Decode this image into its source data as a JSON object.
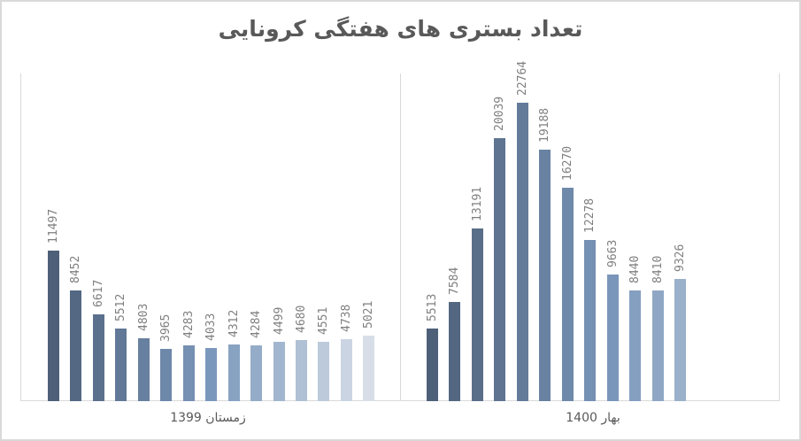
{
  "chart_data": {
    "type": "bar",
    "title": "تعداد بستری های هفتگی کرونایی",
    "xlabel": "",
    "ylabel": "",
    "grid": false,
    "legend": "none",
    "ylim": [
      0,
      22764
    ],
    "groups": [
      {
        "name": "زمستان 1399",
        "values": [
          11497,
          8452,
          6617,
          5512,
          4803,
          3965,
          4283,
          4033,
          4312,
          4284,
          4499,
          4680,
          4551,
          4738,
          5021
        ]
      },
      {
        "name": "بهار 1400",
        "values": [
          5513,
          7584,
          13191,
          20039,
          22764,
          19188,
          16270,
          12278,
          9663,
          8440,
          8410,
          9326
        ]
      }
    ],
    "categories": [
      "زمستان 1399",
      "بهار 1400"
    ]
  },
  "colors": {
    "dark": "#4e6079",
    "mid": "#7b98bc",
    "light": "#d7dee8",
    "label": "#7f7f7f",
    "axis": "#d9d9d9"
  }
}
